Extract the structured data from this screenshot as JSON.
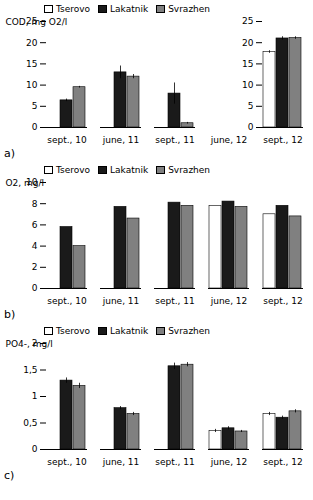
{
  "chart_data": [
    {
      "type": "bar",
      "ylabel": "COD, mg O2/l",
      "categories": [
        "sept., 10",
        "june, 11",
        "sept., 11",
        "june, 12",
        "sept., 12"
      ],
      "series": [
        {
          "name": "Tserovo",
          "color": "white",
          "values": [
            null,
            null,
            null,
            null,
            17.8
          ],
          "errors": [
            null,
            null,
            null,
            null,
            0.3
          ]
        },
        {
          "name": "Lakatnik",
          "color": "#1a1a1a",
          "values": [
            6.4,
            13.0,
            8.0,
            null,
            21.0
          ],
          "errors": [
            0.3,
            1.5,
            2.5,
            null,
            0.4
          ]
        },
        {
          "name": "Svrazhen",
          "color": "#808080",
          "values": [
            9.5,
            12.0,
            1.0,
            null,
            21.1
          ],
          "errors": [
            0.2,
            0.5,
            0.2,
            null,
            0.3
          ]
        }
      ],
      "ylim": [
        0,
        25
      ],
      "yticks": [
        0,
        5,
        10,
        15,
        20,
        25
      ],
      "grid": false,
      "legend": "upper left",
      "annotations": [
        "a)"
      ]
    },
    {
      "type": "bar",
      "ylabel": "O2, mg/l",
      "categories": [
        "sept., 10",
        "june, 11",
        "sept., 11",
        "june, 12",
        "sept., 12"
      ],
      "series": [
        {
          "name": "Tserovo",
          "color": "white",
          "values": [
            null,
            null,
            null,
            7.8,
            7.0
          ]
        },
        {
          "name": "Lakatnik",
          "color": "#1a1a1a",
          "values": [
            5.8,
            7.7,
            8.1,
            8.2,
            7.8
          ]
        },
        {
          "name": "Svrazhen",
          "color": "#808080",
          "values": [
            4.0,
            6.6,
            7.8,
            7.7,
            6.8
          ]
        }
      ],
      "ylim": [
        0,
        10
      ],
      "yticks": [
        0,
        2,
        4,
        6,
        8,
        10
      ],
      "grid": false,
      "legend": "upper left",
      "annotations": [
        "b)"
      ]
    },
    {
      "type": "bar",
      "ylabel": "PO4-, mg/l",
      "categories": [
        "sept., 10",
        "june, 11",
        "sept., 11",
        "june, 12",
        "sept., 12"
      ],
      "series": [
        {
          "name": "Tserovo",
          "color": "white",
          "values": [
            null,
            null,
            null,
            0.35,
            0.67
          ],
          "errors": [
            null,
            null,
            null,
            0.03,
            0.03
          ]
        },
        {
          "name": "Lakatnik",
          "color": "#1a1a1a",
          "values": [
            1.3,
            0.78,
            1.57,
            0.4,
            0.6
          ],
          "errors": [
            0.05,
            0.03,
            0.06,
            0.03,
            0.03
          ]
        },
        {
          "name": "Svrazhen",
          "color": "#808080",
          "values": [
            1.2,
            0.67,
            1.6,
            0.34,
            0.72
          ],
          "errors": [
            0.05,
            0.03,
            0.04,
            0.02,
            0.03
          ]
        }
      ],
      "ylim": [
        0,
        2
      ],
      "yticks": [
        0,
        {
          "value": 0.5,
          "label": "0,5"
        },
        1,
        {
          "value": 1.5,
          "label": "1,5"
        },
        2
      ],
      "grid": false,
      "legend": "upper left",
      "annotations": [
        "c)"
      ]
    }
  ]
}
